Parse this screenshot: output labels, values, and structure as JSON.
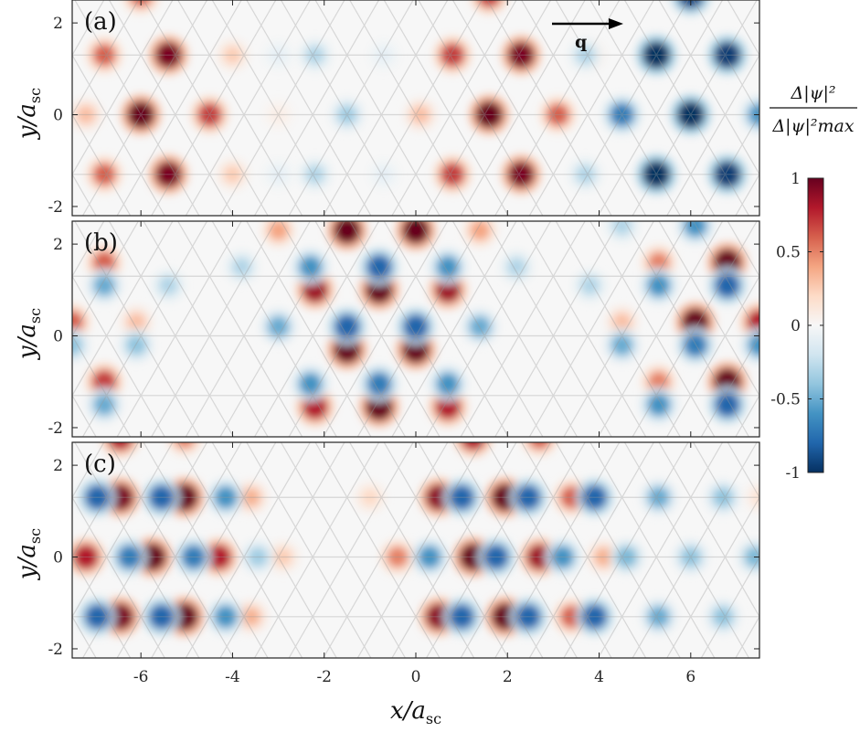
{
  "chart_data": {
    "type": "heatmap",
    "xlabel": "x/a",
    "xlabel_sub": "sc",
    "ylabel": "y/a",
    "ylabel_sub": "sc",
    "xlim": [
      -7.5,
      7.5
    ],
    "ylim": [
      -2.2,
      2.5
    ],
    "x_ticks": [
      -6,
      -4,
      -2,
      0,
      2,
      4,
      6
    ],
    "x_tick_labels": [
      "-6",
      "-4",
      "-2",
      "0",
      "2",
      "4",
      "6"
    ],
    "y_ticks": [
      2,
      0,
      -2
    ],
    "y_tick_labels": [
      "2",
      "0",
      "-2"
    ],
    "q_vector_label": "q",
    "colorbar": {
      "title_numerator": "Δ|ψ|²",
      "title_denominator": "Δ|ψ|²max",
      "range": [
        -1,
        1
      ],
      "ticks": [
        1,
        0.5,
        0,
        -0.5,
        -1
      ],
      "tick_labels": [
        "1",
        "0.5",
        "0",
        "-0.5",
        "-1"
      ],
      "colormap": [
        "#053061",
        "#2166ac",
        "#4393c3",
        "#92c5de",
        "#d1e5f0",
        "#f7f7f7",
        "#fddbc7",
        "#f4a582",
        "#d6604d",
        "#b2182b",
        "#67001f"
      ]
    },
    "panels": [
      {
        "label": "(a)",
        "peaks": [
          {
            "x": -6.0,
            "y": 0,
            "v": 1.0
          },
          {
            "x": -5.4,
            "y": 1.3,
            "v": 0.95
          },
          {
            "x": -5.4,
            "y": -1.3,
            "v": 0.95
          },
          {
            "x": -6.8,
            "y": 1.3,
            "v": 0.6
          },
          {
            "x": -6.8,
            "y": -1.3,
            "v": 0.6
          },
          {
            "x": -4.5,
            "y": 0,
            "v": 0.7
          },
          {
            "x": -7.2,
            "y": 0,
            "v": 0.3
          },
          {
            "x": -4.0,
            "y": 1.3,
            "v": 0.25
          },
          {
            "x": -4.0,
            "y": -1.3,
            "v": 0.25
          },
          {
            "x": -3.0,
            "y": 0,
            "v": 0.08
          },
          {
            "x": -2.2,
            "y": 1.3,
            "v": -0.3
          },
          {
            "x": -2.2,
            "y": -1.3,
            "v": -0.3
          },
          {
            "x": -1.5,
            "y": 0,
            "v": -0.35
          },
          {
            "x": -3.0,
            "y": 1.3,
            "v": -0.1
          },
          {
            "x": -3.0,
            "y": -1.3,
            "v": -0.1
          },
          {
            "x": -0.7,
            "y": 1.3,
            "v": -0.1
          },
          {
            "x": -0.7,
            "y": -1.3,
            "v": -0.1
          },
          {
            "x": 1.6,
            "y": 0,
            "v": 1.0
          },
          {
            "x": 2.3,
            "y": 1.3,
            "v": 0.95
          },
          {
            "x": 2.3,
            "y": -1.3,
            "v": 0.95
          },
          {
            "x": 0.8,
            "y": 1.3,
            "v": 0.7
          },
          {
            "x": 0.8,
            "y": -1.3,
            "v": 0.7
          },
          {
            "x": 3.1,
            "y": 0,
            "v": 0.6
          },
          {
            "x": 0.1,
            "y": 0,
            "v": 0.3
          },
          {
            "x": 3.8,
            "y": 1.3,
            "v": 0.15
          },
          {
            "x": 6.0,
            "y": 0,
            "v": -1.0
          },
          {
            "x": 5.25,
            "y": 1.3,
            "v": -1.0
          },
          {
            "x": 5.25,
            "y": -1.3,
            "v": -1.0
          },
          {
            "x": 6.8,
            "y": 1.3,
            "v": -0.95
          },
          {
            "x": 6.8,
            "y": -1.3,
            "v": -0.95
          },
          {
            "x": 4.5,
            "y": 0,
            "v": -0.7
          },
          {
            "x": 7.5,
            "y": 0,
            "v": -0.6
          },
          {
            "x": 3.7,
            "y": 1.3,
            "v": -0.3
          },
          {
            "x": 3.7,
            "y": -1.3,
            "v": -0.3
          },
          {
            "x": 6.0,
            "y": 2.6,
            "v": -0.9
          },
          {
            "x": 1.6,
            "y": 2.6,
            "v": 0.7
          },
          {
            "x": -6.0,
            "y": 2.6,
            "v": 0.6
          }
        ]
      },
      {
        "label": "(b)",
        "peaks": [
          {
            "x": -1.5,
            "y": 2.3,
            "v": 1.0
          },
          {
            "x": 0.0,
            "y": 2.3,
            "v": 1.0
          },
          {
            "x": -3.0,
            "y": 2.3,
            "v": 0.4
          },
          {
            "x": 1.4,
            "y": 2.3,
            "v": 0.4
          },
          {
            "x": -0.8,
            "y": 1.0,
            "v": 1.0
          },
          {
            "x": -2.2,
            "y": 1.0,
            "v": 0.85
          },
          {
            "x": 0.7,
            "y": 1.0,
            "v": 0.85
          },
          {
            "x": -1.5,
            "y": -0.3,
            "v": 1.0
          },
          {
            "x": 0.0,
            "y": -0.3,
            "v": 1.0
          },
          {
            "x": -0.8,
            "y": -1.55,
            "v": 1.0
          },
          {
            "x": -2.2,
            "y": -1.55,
            "v": 0.8
          },
          {
            "x": 0.7,
            "y": -1.55,
            "v": 0.8
          },
          {
            "x": -0.8,
            "y": 1.5,
            "v": -0.8
          },
          {
            "x": -2.3,
            "y": 1.5,
            "v": -0.6
          },
          {
            "x": 0.7,
            "y": 1.5,
            "v": -0.6
          },
          {
            "x": -3.8,
            "y": 1.5,
            "v": -0.3
          },
          {
            "x": 2.2,
            "y": 1.5,
            "v": -0.3
          },
          {
            "x": -1.5,
            "y": 0.2,
            "v": -0.8
          },
          {
            "x": 0.0,
            "y": 0.2,
            "v": -0.8
          },
          {
            "x": -3.0,
            "y": 0.2,
            "v": -0.5
          },
          {
            "x": 1.4,
            "y": 0.2,
            "v": -0.5
          },
          {
            "x": -0.8,
            "y": -1.05,
            "v": -0.7
          },
          {
            "x": -2.3,
            "y": -1.05,
            "v": -0.6
          },
          {
            "x": 0.7,
            "y": -1.05,
            "v": -0.6
          },
          {
            "x": -6.8,
            "y": 1.6,
            "v": 0.6
          },
          {
            "x": -6.8,
            "y": -1.0,
            "v": 0.7
          },
          {
            "x": -7.5,
            "y": 0.3,
            "v": 0.6
          },
          {
            "x": -6.1,
            "y": 0.3,
            "v": 0.3
          },
          {
            "x": -6.8,
            "y": 1.1,
            "v": -0.5
          },
          {
            "x": -6.8,
            "y": -1.5,
            "v": -0.5
          },
          {
            "x": -7.5,
            "y": -0.2,
            "v": -0.4
          },
          {
            "x": -6.1,
            "y": -0.2,
            "v": -0.4
          },
          {
            "x": -5.4,
            "y": 1.1,
            "v": -0.3
          },
          {
            "x": 6.8,
            "y": 1.6,
            "v": 1.0
          },
          {
            "x": 6.8,
            "y": -1.0,
            "v": 1.0
          },
          {
            "x": 6.1,
            "y": 0.3,
            "v": 1.0
          },
          {
            "x": 7.5,
            "y": 0.3,
            "v": 0.8
          },
          {
            "x": 5.3,
            "y": 1.6,
            "v": 0.5
          },
          {
            "x": 5.3,
            "y": -1.0,
            "v": 0.5
          },
          {
            "x": 4.5,
            "y": 0.3,
            "v": 0.3
          },
          {
            "x": 6.8,
            "y": 1.1,
            "v": -0.8
          },
          {
            "x": 6.8,
            "y": -1.5,
            "v": -0.8
          },
          {
            "x": 6.1,
            "y": -0.2,
            "v": -0.7
          },
          {
            "x": 7.5,
            "y": -0.2,
            "v": -0.6
          },
          {
            "x": 5.3,
            "y": 1.1,
            "v": -0.6
          },
          {
            "x": 5.3,
            "y": -1.5,
            "v": -0.6
          },
          {
            "x": 4.5,
            "y": -0.2,
            "v": -0.5
          },
          {
            "x": 3.8,
            "y": 1.1,
            "v": -0.3
          },
          {
            "x": 6.1,
            "y": 2.4,
            "v": -0.6
          },
          {
            "x": 4.5,
            "y": 2.4,
            "v": -0.3
          }
        ]
      },
      {
        "label": "(c)",
        "peaks": [
          {
            "x": -6.45,
            "y": 1.3,
            "v": 0.95
          },
          {
            "x": -5.05,
            "y": 1.3,
            "v": 1.0
          },
          {
            "x": -6.45,
            "y": -1.3,
            "v": 0.95
          },
          {
            "x": -5.05,
            "y": -1.3,
            "v": 1.0
          },
          {
            "x": -7.2,
            "y": 0,
            "v": 0.8
          },
          {
            "x": -5.75,
            "y": 0,
            "v": 1.0
          },
          {
            "x": -4.3,
            "y": 0,
            "v": 0.8
          },
          {
            "x": -3.6,
            "y": 1.3,
            "v": 0.35
          },
          {
            "x": -3.6,
            "y": -1.3,
            "v": 0.35
          },
          {
            "x": -2.9,
            "y": 0,
            "v": 0.25
          },
          {
            "x": -6.95,
            "y": 1.3,
            "v": -0.8
          },
          {
            "x": -5.55,
            "y": 1.3,
            "v": -0.8
          },
          {
            "x": -4.15,
            "y": 1.3,
            "v": -0.6
          },
          {
            "x": -6.95,
            "y": -1.3,
            "v": -0.8
          },
          {
            "x": -5.55,
            "y": -1.3,
            "v": -0.8
          },
          {
            "x": -4.15,
            "y": -1.3,
            "v": -0.6
          },
          {
            "x": -6.25,
            "y": 0,
            "v": -0.7
          },
          {
            "x": -4.85,
            "y": 0,
            "v": -0.7
          },
          {
            "x": -3.45,
            "y": 0,
            "v": -0.35
          },
          {
            "x": 0.5,
            "y": 1.3,
            "v": 0.9
          },
          {
            "x": 1.95,
            "y": 1.3,
            "v": 1.0
          },
          {
            "x": 3.4,
            "y": 1.3,
            "v": 0.6
          },
          {
            "x": 0.5,
            "y": -1.3,
            "v": 0.9
          },
          {
            "x": 1.95,
            "y": -1.3,
            "v": 1.0
          },
          {
            "x": 3.4,
            "y": -1.3,
            "v": 0.6
          },
          {
            "x": 1.25,
            "y": 0,
            "v": 1.0
          },
          {
            "x": 2.7,
            "y": 0,
            "v": 0.85
          },
          {
            "x": -0.4,
            "y": 0,
            "v": 0.5
          },
          {
            "x": 4.1,
            "y": 0,
            "v": 0.35
          },
          {
            "x": -1.0,
            "y": 1.3,
            "v": 0.2
          },
          {
            "x": 1.0,
            "y": 1.3,
            "v": -0.8
          },
          {
            "x": 2.45,
            "y": 1.3,
            "v": -0.8
          },
          {
            "x": 3.9,
            "y": 1.3,
            "v": -0.8
          },
          {
            "x": 1.0,
            "y": -1.3,
            "v": -0.8
          },
          {
            "x": 2.45,
            "y": -1.3,
            "v": -0.8
          },
          {
            "x": 3.9,
            "y": -1.3,
            "v": -0.8
          },
          {
            "x": 0.3,
            "y": 0,
            "v": -0.6
          },
          {
            "x": 1.75,
            "y": 0,
            "v": -0.8
          },
          {
            "x": 3.2,
            "y": 0,
            "v": -0.6
          },
          {
            "x": 5.3,
            "y": 1.3,
            "v": -0.5
          },
          {
            "x": 5.3,
            "y": -1.3,
            "v": -0.5
          },
          {
            "x": 4.6,
            "y": 0,
            "v": -0.45
          },
          {
            "x": 6.7,
            "y": 1.3,
            "v": -0.4
          },
          {
            "x": 6.7,
            "y": -1.3,
            "v": -0.4
          },
          {
            "x": 6.0,
            "y": 0,
            "v": -0.4
          },
          {
            "x": 7.4,
            "y": 0,
            "v": -0.45
          },
          {
            "x": 7.5,
            "y": 1.3,
            "v": 0.15
          },
          {
            "x": -6.45,
            "y": 2.6,
            "v": 0.8
          },
          {
            "x": 1.25,
            "y": 2.6,
            "v": 0.8
          },
          {
            "x": 2.7,
            "y": 2.6,
            "v": 0.6
          },
          {
            "x": -5.05,
            "y": 2.6,
            "v": 0.5
          }
        ]
      }
    ]
  }
}
